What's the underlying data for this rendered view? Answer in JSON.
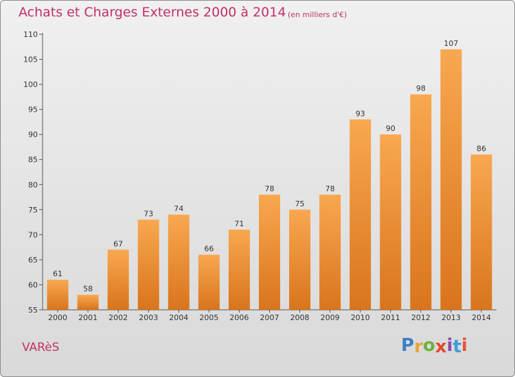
{
  "header": {
    "title": "Achats et Charges Externes 2000 à 2014",
    "unit": "(en milliers d'€)"
  },
  "footer": {
    "commune": "VARèS",
    "logo": "Proxiti"
  },
  "colors": {
    "title": "#c0306a",
    "bar_top": "#f8a850",
    "bar_bottom": "#d9741c",
    "logo_letters": [
      "#3a7fc4",
      "#e8a33a",
      "#6bb23b",
      "#e04a2a",
      "#8d4bb0",
      "#3a9fd6",
      "#e8543a"
    ]
  },
  "chart_data": {
    "type": "bar",
    "title": "Achats et Charges Externes 2000 à 2014",
    "subtitle": "(en milliers d'€)",
    "categories": [
      "2000",
      "2001",
      "2002",
      "2003",
      "2004",
      "2005",
      "2006",
      "2007",
      "2008",
      "2009",
      "2010",
      "2011",
      "2012",
      "2013",
      "2014"
    ],
    "values": [
      61,
      58,
      67,
      73,
      74,
      66,
      71,
      78,
      75,
      78,
      93,
      90,
      98,
      107,
      86
    ],
    "ylim": [
      55,
      110
    ],
    "yticks": [
      55,
      60,
      65,
      70,
      75,
      80,
      85,
      90,
      95,
      100,
      105,
      110
    ],
    "grid": false,
    "data_labels": true
  }
}
